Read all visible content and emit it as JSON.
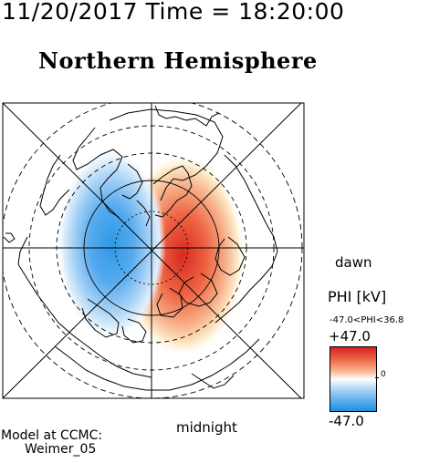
{
  "header": {
    "date": "11/20/2017",
    "time_label": "Time",
    "equals": "=",
    "time": "18:20:00"
  },
  "hemisphere_title": "Northern Hemisphere",
  "orientation": {
    "right": "dawn",
    "bottom": "midnight"
  },
  "colorbar": {
    "title": "PHI [kV]",
    "range_text": "-47.0<PHI<36.8",
    "max_label": "+47.0",
    "zero_label": "0",
    "min_label": "-47.0",
    "colors": [
      "#d62020",
      "#ef6a4a",
      "#f8b898",
      "#ffffff",
      "#bfe0f6",
      "#6cb6ee",
      "#1d8fe0"
    ]
  },
  "model": {
    "line1": "Model at CCMC:",
    "line2": "Weimer_05"
  }
}
